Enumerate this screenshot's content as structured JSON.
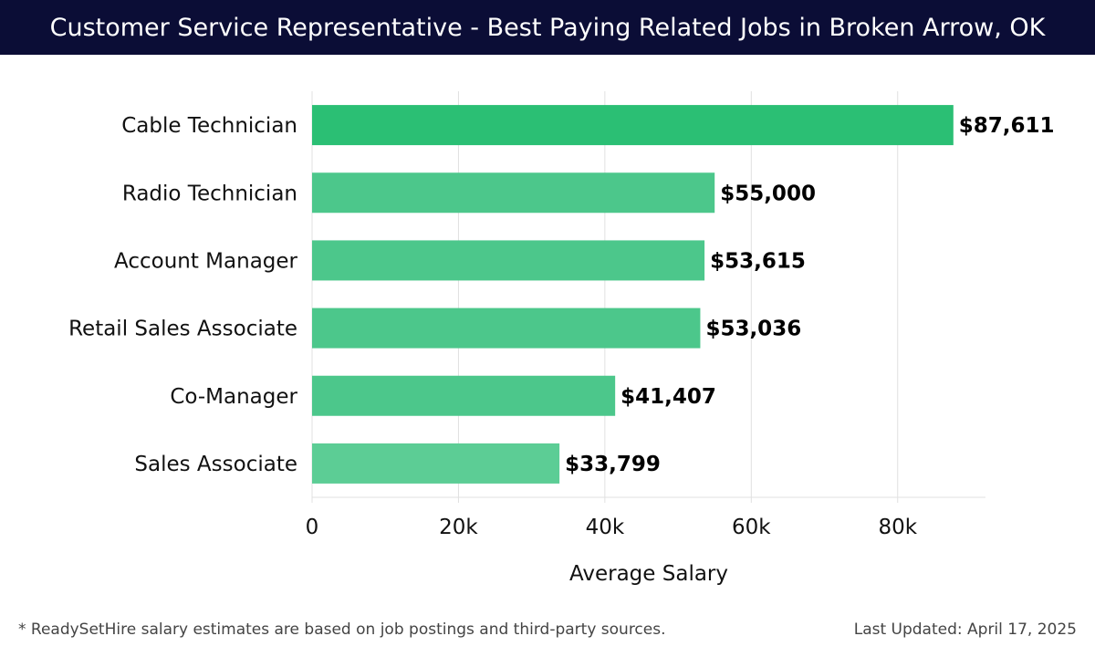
{
  "header": {
    "title": "Customer Service Representative - Best Paying Related Jobs in Broken Arrow, OK"
  },
  "footer": {
    "note": "* ReadySetHire salary estimates are based on job postings and third-party sources.",
    "updated": "Last Updated: April 17, 2025"
  },
  "colors": {
    "header_bg": "#0b0d36",
    "bar_top": "#2bbf74",
    "bar": "#4cc78b",
    "bar_light": "#5ccd95",
    "grid": "#e0e0e0"
  },
  "chart_data": {
    "type": "bar",
    "orientation": "horizontal",
    "categories": [
      "Cable Technician",
      "Radio Technician",
      "Account Manager",
      "Retail Sales Associate",
      "Co-Manager",
      "Sales Associate"
    ],
    "values": [
      87611,
      55000,
      53615,
      53036,
      41407,
      33799
    ],
    "value_labels": [
      "$87,611",
      "$55,000",
      "$53,615",
      "$53,036",
      "$41,407",
      "$33,799"
    ],
    "xlabel": "Average Salary",
    "xlim": [
      0,
      92000
    ],
    "xticks": [
      0,
      20000,
      40000,
      60000,
      80000
    ],
    "xtick_labels": [
      "0",
      "20k",
      "40k",
      "60k",
      "80k"
    ],
    "grid": "vertical"
  }
}
